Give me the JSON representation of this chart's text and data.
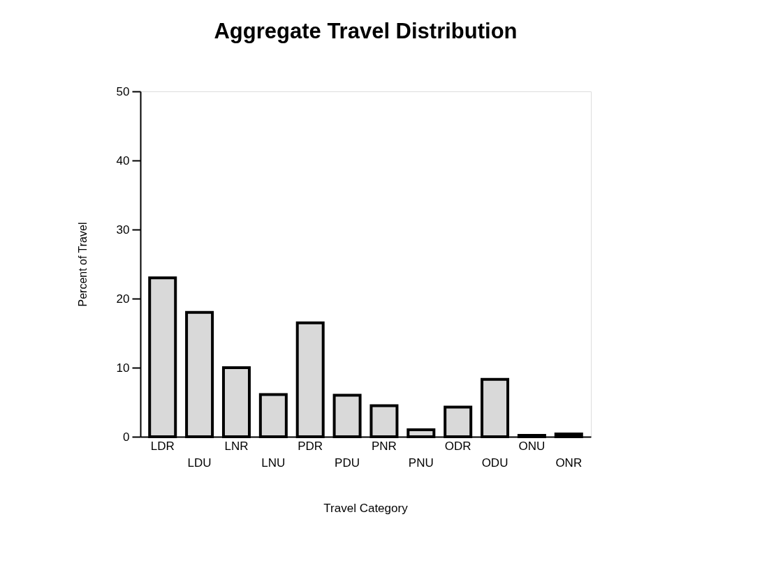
{
  "chart_data": {
    "type": "bar",
    "title": "Aggregate Travel Distribution",
    "xlabel": "Travel Category",
    "ylabel": "Percent of Travel",
    "categories": [
      "LDR",
      "LDU",
      "LNR",
      "LNU",
      "PDR",
      "PDU",
      "PNR",
      "PNU",
      "ODR",
      "ODU",
      "ONU",
      "ONR"
    ],
    "values": [
      23,
      18,
      10,
      6.1,
      16.5,
      6,
      4.5,
      1,
      4.3,
      8.3,
      0.2,
      0.4
    ],
    "color": "#d9d9d9",
    "ylim": [
      0,
      50
    ],
    "yticks": [
      0,
      10,
      20,
      30,
      40,
      50
    ],
    "grid": false
  }
}
